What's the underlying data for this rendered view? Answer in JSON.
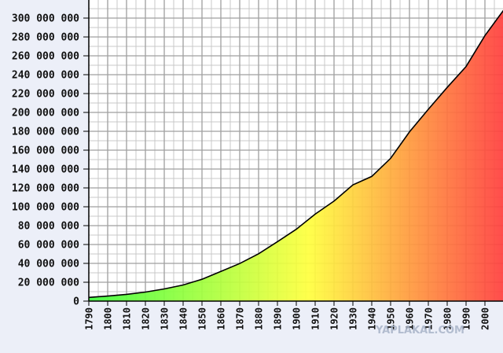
{
  "chart_data": {
    "type": "area",
    "title": "",
    "xlabel": "",
    "ylabel": "",
    "x": [
      1790,
      1800,
      1810,
      1820,
      1830,
      1840,
      1850,
      1860,
      1870,
      1880,
      1890,
      1900,
      1910,
      1920,
      1930,
      1940,
      1950,
      1960,
      1970,
      1980,
      1990,
      2000,
      2010
    ],
    "series": [
      {
        "values": [
          3900000,
          5300000,
          7200000,
          9600000,
          12900000,
          17100000,
          23200000,
          31400000,
          39800000,
          50200000,
          63000000,
          76200000,
          92200000,
          106000000,
          123200000,
          132200000,
          151300000,
          179300000,
          203300000,
          226500000,
          248700000,
          281400000,
          308700000
        ]
      }
    ],
    "xlim": [
      1790,
      2010
    ],
    "ylim": [
      0,
      300000000
    ],
    "y_ticks": [
      "0",
      "20 000 000",
      "40 000 000",
      "60 000 000",
      "80 000 000",
      "100 000 000",
      "120 000 000",
      "140 000 000",
      "160 000 000",
      "180 000 000",
      "200 000 000",
      "220 000 000",
      "240 000 000",
      "260 000 000",
      "280 000 000",
      "300 000 000"
    ],
    "x_ticks": [
      "1790",
      "1800",
      "1810",
      "1820",
      "1830",
      "1840",
      "1850",
      "1860",
      "1870",
      "1880",
      "1890",
      "1900",
      "1910",
      "1920",
      "1930",
      "1940",
      "1950",
      "1960",
      "1970",
      "1980",
      "1990",
      "2000"
    ],
    "grid": true,
    "fill_gradient": [
      "#3dff3d",
      "#ffff3d",
      "#ff9f3d",
      "#ff3d3d"
    ]
  },
  "watermark": "YAPLAKAL.COM"
}
